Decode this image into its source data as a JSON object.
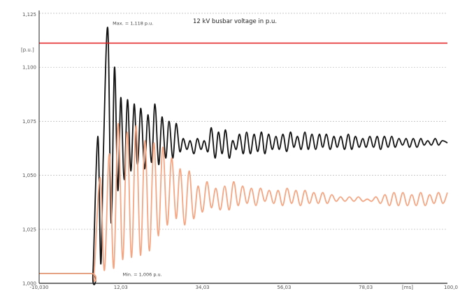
{
  "chart_data": {
    "type": "line",
    "title": "12 kV busbar voltage in p.u.",
    "y_unit_label": "[p.u.]",
    "x_unit_label": "[ms]",
    "xlim": [
      -10.0,
      100.0
    ],
    "ylim": [
      1.0,
      1.125
    ],
    "x_ticks": [
      -10.0,
      12.0,
      34.0,
      56.0,
      78.0,
      100.0
    ],
    "x_tick_labels": [
      "-10,030",
      "12,03",
      "34,03",
      "56,03",
      "78,03",
      "100,0"
    ],
    "y_ticks": [
      1.0,
      1.025,
      1.05,
      1.075,
      1.1,
      1.125
    ],
    "y_tick_labels": [
      "1,000",
      "1,025",
      "1,050",
      "1,075",
      "1,100",
      "1,125"
    ],
    "grid": "horizontal-dashed",
    "reference_line": {
      "y": 1.1112,
      "color": "#e31a1c"
    },
    "annotations": [
      {
        "text": "Max. = 1,118 p.u.",
        "x": 8.3,
        "y": 1.118
      },
      {
        "text": "Min. = 1,006 p.u.",
        "x": 11.0,
        "y": 1.006
      }
    ],
    "series": [
      {
        "color": "#111111",
        "x": [
          -10.0,
          4.0,
          4.5,
          5.8,
          6.6,
          7.3,
          8.5,
          9.4,
          10.3,
          11.2,
          12.0,
          12.9,
          13.8,
          14.7,
          15.6,
          16.5,
          17.4,
          18.4,
          19.3,
          20.3,
          21.2,
          22.2,
          23.1,
          24.1,
          25.0,
          26.0,
          26.9,
          27.9,
          28.8,
          29.8,
          30.7,
          31.7,
          32.6,
          33.6,
          34.5,
          35.5,
          36.4,
          37.4,
          38.3,
          39.3,
          40.2,
          41.2,
          42.1,
          43.1,
          44.0,
          45.0,
          45.9,
          46.9,
          47.9,
          48.9,
          49.9,
          50.8,
          51.8,
          52.8,
          53.8,
          54.7,
          55.7,
          56.7,
          57.7,
          58.6,
          59.6,
          60.6,
          61.6,
          62.5,
          63.5,
          64.5,
          65.5,
          66.4,
          67.4,
          68.4,
          69.4,
          70.3,
          71.3,
          72.3,
          73.3,
          74.2,
          75.2,
          76.2,
          77.2,
          78.1,
          79.1,
          80.1,
          81.1,
          82.0,
          83.0,
          84.0,
          85.0,
          85.9,
          86.9,
          87.9,
          88.9,
          89.8,
          90.8,
          91.8,
          92.8,
          93.7,
          94.7,
          95.7,
          96.7,
          97.6,
          98.6,
          100.0
        ],
        "y": [
          1.0045,
          1.0045,
          1.0045,
          1.068,
          1.009,
          1.06,
          1.118,
          1.028,
          1.1,
          1.043,
          1.086,
          1.048,
          1.085,
          1.052,
          1.083,
          1.055,
          1.081,
          1.053,
          1.078,
          1.056,
          1.083,
          1.055,
          1.077,
          1.058,
          1.075,
          1.058,
          1.074,
          1.061,
          1.067,
          1.062,
          1.066,
          1.06,
          1.067,
          1.062,
          1.066,
          1.061,
          1.072,
          1.058,
          1.07,
          1.06,
          1.071,
          1.058,
          1.066,
          1.062,
          1.069,
          1.06,
          1.07,
          1.06,
          1.069,
          1.061,
          1.07,
          1.06,
          1.069,
          1.062,
          1.068,
          1.062,
          1.069,
          1.061,
          1.07,
          1.063,
          1.068,
          1.062,
          1.07,
          1.062,
          1.069,
          1.062,
          1.069,
          1.063,
          1.069,
          1.062,
          1.068,
          1.063,
          1.068,
          1.062,
          1.069,
          1.062,
          1.068,
          1.063,
          1.067,
          1.063,
          1.068,
          1.063,
          1.068,
          1.062,
          1.068,
          1.063,
          1.068,
          1.063,
          1.067,
          1.064,
          1.067,
          1.063,
          1.067,
          1.063,
          1.067,
          1.064,
          1.066,
          1.064,
          1.067,
          1.064,
          1.066,
          1.065
        ]
      },
      {
        "color": "#f4a582",
        "x": [
          -10.0,
          4.0,
          4.8,
          6.4,
          7.6,
          8.9,
          10.1,
          11.3,
          12.5,
          13.7,
          14.9,
          16.1,
          17.3,
          18.5,
          19.7,
          20.9,
          22.1,
          23.3,
          24.5,
          25.7,
          26.9,
          28.0,
          29.2,
          30.4,
          31.6,
          32.8,
          34.0,
          35.2,
          36.4,
          37.6,
          38.8,
          40.0,
          41.2,
          42.4,
          43.6,
          44.8,
          46.0,
          47.2,
          48.4,
          49.6,
          50.8,
          52.0,
          53.2,
          54.4,
          55.6,
          56.8,
          58.0,
          59.2,
          60.4,
          61.6,
          62.8,
          64.0,
          65.2,
          66.4,
          67.6,
          68.8,
          70.0,
          71.2,
          72.4,
          73.6,
          74.8,
          76.0,
          77.2,
          78.4,
          79.6,
          80.8,
          82.0,
          83.2,
          84.4,
          85.6,
          86.8,
          88.0,
          89.2,
          90.4,
          91.6,
          92.8,
          94.0,
          95.2,
          96.4,
          97.6,
          98.8,
          100.0
        ],
        "y": [
          1.0045,
          1.0045,
          1.0045,
          1.049,
          1.006,
          1.06,
          1.007,
          1.074,
          1.011,
          1.07,
          1.012,
          1.073,
          1.013,
          1.066,
          1.015,
          1.065,
          1.022,
          1.063,
          1.027,
          1.058,
          1.03,
          1.053,
          1.027,
          1.052,
          1.03,
          1.045,
          1.033,
          1.047,
          1.035,
          1.044,
          1.034,
          1.045,
          1.034,
          1.047,
          1.036,
          1.045,
          1.037,
          1.044,
          1.036,
          1.044,
          1.038,
          1.043,
          1.037,
          1.043,
          1.036,
          1.044,
          1.037,
          1.043,
          1.036,
          1.043,
          1.037,
          1.042,
          1.037,
          1.042,
          1.037,
          1.041,
          1.038,
          1.04,
          1.038,
          1.04,
          1.038,
          1.04,
          1.038,
          1.039,
          1.038,
          1.04,
          1.037,
          1.041,
          1.036,
          1.042,
          1.036,
          1.042,
          1.036,
          1.041,
          1.036,
          1.042,
          1.036,
          1.041,
          1.037,
          1.042,
          1.037,
          1.042
        ]
      }
    ]
  }
}
